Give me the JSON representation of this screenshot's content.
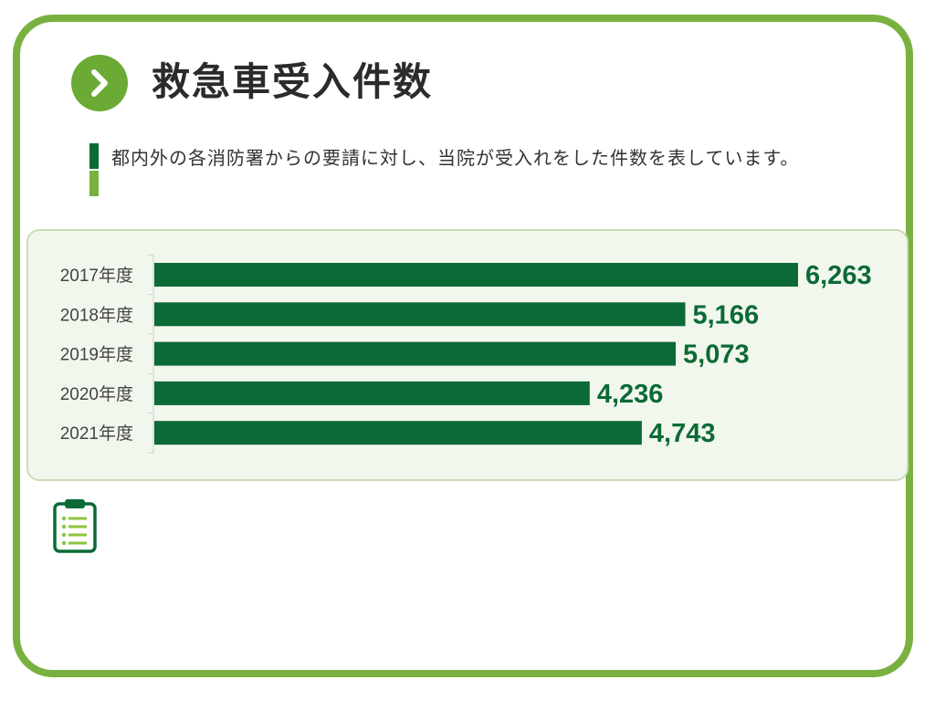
{
  "header": {
    "title": "救急車受入件数",
    "badge_icon": "chevron-right-icon"
  },
  "description": "都内外の各消防署からの要請に対し、当院が受入れをした件数を表しています。",
  "footer_icon": "clipboard-list-icon",
  "colors": {
    "frame": "#78b13f",
    "bar": "#0b6a35",
    "value_text": "#0b6a35",
    "panel_bg": "#f2f7ee",
    "panel_border": "#c9ddb8"
  },
  "chart_data": {
    "type": "bar",
    "orientation": "horizontal",
    "categories": [
      "2017年度",
      "2018年度",
      "2019年度",
      "2020年度",
      "2021年度"
    ],
    "values": [
      6263,
      5166,
      5073,
      4236,
      4743
    ],
    "value_labels": [
      "6,263",
      "5,166",
      "5,073",
      "4,236",
      "4,743"
    ],
    "title": "",
    "xlabel": "",
    "ylabel": "",
    "xlim": [
      0,
      6263
    ],
    "grid": false,
    "legend": "none"
  }
}
